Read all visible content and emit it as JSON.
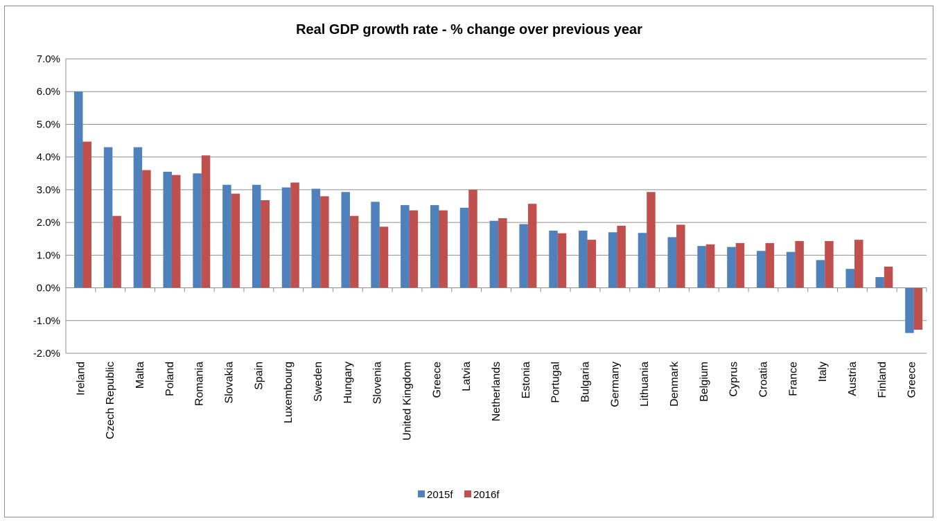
{
  "chart_data": {
    "type": "bar",
    "title": "Real GDP growth rate - % change over previous year",
    "xlabel": "",
    "ylabel": "",
    "ylim": [
      -2.0,
      7.0
    ],
    "y_ticks": [
      "7.0%",
      "6.0%",
      "5.0%",
      "4.0%",
      "3.0%",
      "2.0%",
      "1.0%",
      "0.0%",
      "-1.0%",
      "-2.0%"
    ],
    "y_tick_values": [
      7,
      6,
      5,
      4,
      3,
      2,
      1,
      0,
      -1,
      -2
    ],
    "grid": true,
    "legend_position": "bottom",
    "categories": [
      "Ireland",
      "Czech Republic",
      "Malta",
      "Poland",
      "Romania",
      "Slovakia",
      "Spain",
      "Luxembourg",
      "Sweden",
      "Hungary",
      "Slovenia",
      "United Kingdom",
      "Greece",
      "Latvia",
      "Netherlands",
      "Estonia",
      "Portugal",
      "Bulgaria",
      "Germany",
      "Lithuania",
      "Denmark",
      "Belgium",
      "Cyprus",
      "Croatia",
      "France",
      "Italy",
      "Austria",
      "Finland",
      "Greece"
    ],
    "series": [
      {
        "name": "2015f",
        "color": "#4f81bd",
        "values": [
          6.0,
          4.3,
          4.3,
          3.55,
          3.5,
          3.15,
          3.15,
          3.07,
          3.03,
          2.93,
          2.63,
          2.53,
          2.53,
          2.45,
          2.05,
          1.95,
          1.75,
          1.75,
          1.7,
          1.68,
          1.55,
          1.28,
          1.25,
          1.13,
          1.1,
          0.85,
          0.58,
          0.33,
          -1.38
        ]
      },
      {
        "name": "2016f",
        "color": "#c0504d",
        "values": [
          4.47,
          2.2,
          3.6,
          3.45,
          4.05,
          2.88,
          2.68,
          3.22,
          2.8,
          2.2,
          1.87,
          2.37,
          2.37,
          3.0,
          2.13,
          2.57,
          1.67,
          1.47,
          1.9,
          2.93,
          1.93,
          1.33,
          1.37,
          1.37,
          1.43,
          1.43,
          1.47,
          0.65,
          -1.28
        ]
      }
    ]
  }
}
